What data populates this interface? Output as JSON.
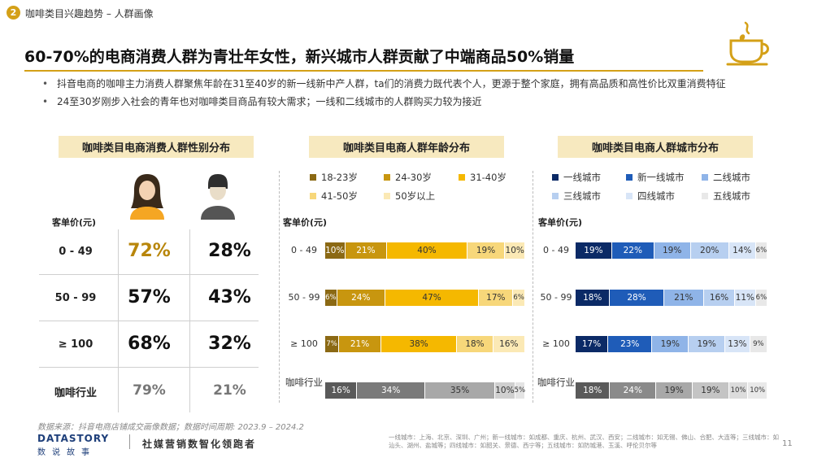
{
  "section": {
    "number": "2",
    "title": "咖啡类目兴趣趋势 – 人群画像"
  },
  "headline": "60-70%的电商消费人群为青壮年女性，新兴城市人群贡献了中端商品50%销量",
  "bullets": [
    "抖音电商的咖啡主力消费人群聚焦年龄在31至40岁的新一线新中产人群，ta们的消费力既代表个人，更源于整个家庭，拥有高品质和高性价比双重消费特征",
    "24至30岁刚步入社会的青年也对咖啡类目商品有较大需求；一线和二线城市的人群购买力较为接近"
  ],
  "colors": {
    "accent": "#d4a017",
    "title_bg": "#f7e9bf"
  },
  "chart_data": [
    {
      "type": "table",
      "title": "咖啡类目电商消费人群性别分布",
      "row_header": "客单价(元)",
      "columns": [
        "female-icon",
        "male-icon"
      ],
      "rows": [
        {
          "label": "0 - 49",
          "values": [
            "72%",
            "28%"
          ]
        },
        {
          "label": "50 - 99",
          "values": [
            "57%",
            "43%"
          ]
        },
        {
          "label": "≥ 100",
          "values": [
            "68%",
            "32%"
          ]
        },
        {
          "label": "咖啡行业",
          "values": [
            "79%",
            "21%"
          ]
        }
      ]
    },
    {
      "type": "bar",
      "stacked": "100%",
      "title": "咖啡类目电商人群年龄分布",
      "ylabel": "客单价(元)",
      "categories": [
        "0 - 49",
        "50 - 99",
        "≥ 100",
        "咖啡行业"
      ],
      "series": [
        {
          "name": "18-23岁",
          "color": "#8b6914",
          "values": [
            10,
            6,
            7,
            16
          ]
        },
        {
          "name": "24-30岁",
          "color": "#c8960f",
          "values": [
            21,
            24,
            21,
            34
          ]
        },
        {
          "name": "31-40岁",
          "color": "#f5b800",
          "values": [
            40,
            47,
            38,
            35
          ]
        },
        {
          "name": "41-50岁",
          "color": "#f7d77a",
          "values": [
            19,
            17,
            18,
            10
          ]
        },
        {
          "name": "50岁以上",
          "color": "#fbe9b5",
          "values": [
            10,
            6,
            16,
            5
          ]
        }
      ],
      "labels": [
        [
          "10%",
          "21%",
          "40%",
          "19%",
          "10%"
        ],
        [
          "6%",
          "24%",
          "47%",
          "17%",
          "6%"
        ],
        [
          "7%",
          "21%",
          "38%",
          "18%",
          "16%"
        ],
        [
          "16%",
          "34%",
          "35%",
          "10%",
          "5%"
        ]
      ],
      "industry_colors": [
        "#5a5a5a",
        "#7a7a7a",
        "#a8a8a8",
        "#cfcfcf",
        "#e4e4e4"
      ],
      "legend_position": "top"
    },
    {
      "type": "bar",
      "stacked": "100%",
      "title": "咖啡类目电商人群城市分布",
      "ylabel": "客单价(元)",
      "categories": [
        "0 - 49",
        "50 - 99",
        "≥ 100",
        "咖啡行业"
      ],
      "series": [
        {
          "name": "一线城市",
          "color": "#0b2a66",
          "values": [
            19,
            18,
            17,
            18
          ]
        },
        {
          "name": "新一线城市",
          "color": "#1f5cb8",
          "values": [
            22,
            28,
            23,
            24
          ]
        },
        {
          "name": "二线城市",
          "color": "#8fb4e8",
          "values": [
            19,
            21,
            19,
            19
          ]
        },
        {
          "name": "三线城市",
          "color": "#b7cff0",
          "values": [
            20,
            16,
            19,
            19
          ]
        },
        {
          "name": "四线城市",
          "color": "#d8e5f7",
          "values": [
            14,
            11,
            13,
            10
          ]
        },
        {
          "name": "五线城市",
          "color": "#e8e8e8",
          "values": [
            6,
            6,
            9,
            10
          ]
        }
      ],
      "labels": [
        [
          "19%",
          "22%",
          "19%",
          "20%",
          "14%",
          "6%"
        ],
        [
          "18%",
          "28%",
          "21%",
          "16%",
          "11%",
          "6%"
        ],
        [
          "17%",
          "23%",
          "19%",
          "19%",
          "13%",
          "9%"
        ],
        [
          "18%",
          "24%",
          "19%",
          "19%",
          "10%",
          "10%"
        ]
      ],
      "industry_colors": [
        "#5a5a5a",
        "#8a8a8a",
        "#a8a8a8",
        "#c4c4c4",
        "#dcdcdc",
        "#e9e9e9"
      ],
      "legend_position": "top"
    }
  ],
  "footer": {
    "source": "数据来源：抖音电商店铺成交画像数据；数据时间周期: 2023.9 – 2024.2",
    "logo": "DATASTORY",
    "logo_sub": "数说故事",
    "slogan": "社媒营销数智化领跑者",
    "note": "一线城市：上海、北京、深圳、广州；新一线城市：如成都、重庆、杭州、武汉、西安；二线城市：如无锡、佛山、合肥、大连等；三线城市：如汕头、湖州、盐城等；四线城市：如韶关、景德、西宁等；五线城市：如防城港、玉溪、呼伦贝尔等",
    "page": "11"
  }
}
